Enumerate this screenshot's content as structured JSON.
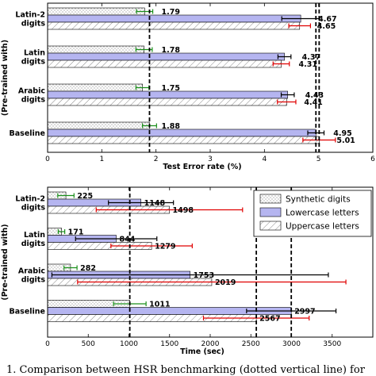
{
  "chart_data": [
    {
      "type": "bar",
      "orientation": "horizontal",
      "xlabel": "Test Error rate (%)",
      "ylabel": "(Pre-trained with)",
      "xlim": [
        0,
        6
      ],
      "xticks": [
        0,
        1,
        2,
        3,
        4,
        5,
        6
      ],
      "categories": [
        "Latin-2\ndigits",
        "Latin\ndigits",
        "Arabic\ndigits",
        "Baseline"
      ],
      "series": [
        {
          "values": [
            1.79,
            1.78,
            1.75,
            1.88
          ],
          "errors": [
            0.15,
            0.15,
            0.12,
            0.13
          ]
        },
        {
          "values": [
            4.67,
            4.37,
            4.43,
            4.95
          ],
          "errors": [
            0.35,
            0.12,
            0.12,
            0.15
          ]
        },
        {
          "values": [
            4.65,
            4.31,
            4.41,
            5.01
          ],
          "errors": [
            0.2,
            0.15,
            0.17,
            0.3
          ]
        }
      ],
      "reference_lines": [
        1.88,
        4.95,
        5.01
      ],
      "grid": false
    },
    {
      "type": "bar",
      "orientation": "horizontal",
      "xlabel": "Time (sec)",
      "ylabel": "(Pre-trained with)",
      "xlim": [
        0,
        4000
      ],
      "xticks": [
        0,
        500,
        1000,
        1500,
        2000,
        2500,
        3000,
        3500
      ],
      "categories": [
        "Latin-2\ndigits",
        "Latin\ndigits",
        "Arabic\ndigits",
        "Baseline"
      ],
      "series": [
        {
          "name": "Synthetic digits",
          "values": [
            225,
            171,
            282,
            1011
          ],
          "errors": [
            100,
            40,
            80,
            200
          ]
        },
        {
          "name": "Lowercase letters",
          "values": [
            1148,
            844,
            1753,
            2997
          ],
          "errors": [
            400,
            500,
            1700,
            550
          ]
        },
        {
          "name": "Uppercase letters",
          "values": [
            1498,
            1279,
            2019,
            2567
          ],
          "errors": [
            900,
            500,
            1650,
            650
          ]
        }
      ],
      "reference_lines": [
        1011,
        2567,
        2997
      ],
      "legend": "top-right",
      "grid": false
    }
  ],
  "colors": {
    "synthetic": "#ffffff",
    "lowercase": "#b5b5f0",
    "uppercase": "#ffffff",
    "err_synthetic": "#1a8f1a",
    "err_lowercase": "#000000",
    "err_uppercase": "#e00000"
  },
  "caption": "1.  Comparison between HSR benchmarking (dotted vertical line) for"
}
